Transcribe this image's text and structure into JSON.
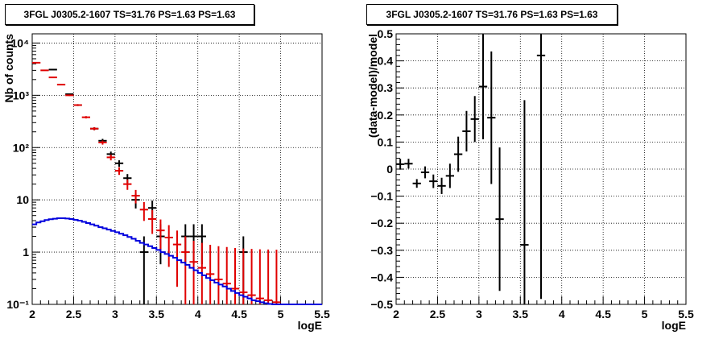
{
  "chart_data": [
    {
      "type": "scatter",
      "title": "3FGL J0305.2-1607 TS=31.76 PS=1.63 PS=1.63",
      "xlabel": "logE",
      "ylabel": "Nb of counts",
      "xlim": [
        2,
        5.5
      ],
      "ylim": [
        0.1,
        15000
      ],
      "yscale": "log",
      "grid": true,
      "x_ticks": [
        "2",
        "2.5",
        "3",
        "3.5",
        "4",
        "4.5",
        "5",
        "5.5"
      ],
      "y_ticks": [
        "10⁻¹",
        "1",
        "10",
        "10²",
        "10³",
        "10⁴"
      ],
      "series": [
        {
          "color": "#000000",
          "points": [
            {
              "x": 2.25,
              "y": 3100
            },
            {
              "x": 2.45,
              "y": 1050
            },
            {
              "x": 2.55,
              "y": 650
            },
            {
              "x": 2.75,
              "y": 230
            },
            {
              "x": 2.85,
              "y": 135
            },
            {
              "x": 2.95,
              "y": 75
            },
            {
              "x": 3.05,
              "y": 50
            },
            {
              "x": 3.15,
              "y": 26
            },
            {
              "x": 3.25,
              "y": 10
            },
            {
              "x": 3.35,
              "y": 1
            },
            {
              "x": 3.45,
              "y": 7
            },
            {
              "x": 3.55,
              "y": 2
            },
            {
              "x": 3.85,
              "y": 2
            },
            {
              "x": 3.95,
              "y": 2
            },
            {
              "x": 4.05,
              "y": 2
            },
            {
              "x": 4.55,
              "y": 1
            }
          ]
        },
        {
          "color": "#e00000",
          "points": [
            {
              "x": 2.05,
              "y": 4200
            },
            {
              "x": 2.15,
              "y": 3000
            },
            {
              "x": 2.25,
              "y": 2200
            },
            {
              "x": 2.35,
              "y": 1600
            },
            {
              "x": 2.45,
              "y": 1000
            },
            {
              "x": 2.55,
              "y": 650
            },
            {
              "x": 2.65,
              "y": 380
            },
            {
              "x": 2.75,
              "y": 230
            },
            {
              "x": 2.85,
              "y": 125
            },
            {
              "x": 2.95,
              "y": 65
            },
            {
              "x": 3.05,
              "y": 36
            },
            {
              "x": 3.15,
              "y": 20
            },
            {
              "x": 3.25,
              "y": 12
            },
            {
              "x": 3.35,
              "y": 6.5
            },
            {
              "x": 3.45,
              "y": 4.3
            },
            {
              "x": 3.55,
              "y": 2.6
            },
            {
              "x": 3.65,
              "y": 1.9
            },
            {
              "x": 3.75,
              "y": 1.4
            },
            {
              "x": 3.85,
              "y": 1.0
            },
            {
              "x": 3.95,
              "y": 0.65
            },
            {
              "x": 4.05,
              "y": 0.5
            },
            {
              "x": 4.15,
              "y": 0.38
            },
            {
              "x": 4.25,
              "y": 0.3
            },
            {
              "x": 4.35,
              "y": 0.25
            },
            {
              "x": 4.45,
              "y": 0.2
            },
            {
              "x": 4.55,
              "y": 0.17
            },
            {
              "x": 4.65,
              "y": 0.15
            },
            {
              "x": 4.75,
              "y": 0.13
            },
            {
              "x": 4.85,
              "y": 0.12
            },
            {
              "x": 4.95,
              "y": 0.11
            }
          ]
        },
        {
          "color": "#0000dd",
          "step_edges": [
            2.0,
            2.05,
            2.1,
            2.15,
            2.2,
            2.25,
            2.3,
            2.35,
            2.4,
            2.45,
            2.5,
            2.55,
            2.6,
            2.65,
            2.7,
            2.75,
            2.8,
            2.85,
            2.9,
            2.95,
            3.0,
            3.05,
            3.1,
            3.15,
            3.2,
            3.25,
            3.3,
            3.35,
            3.4,
            3.45,
            3.5,
            3.55,
            3.6,
            3.65,
            3.7,
            3.75,
            3.8,
            3.85,
            3.9,
            3.95,
            4.0,
            4.05,
            4.1,
            4.15,
            4.2,
            4.25,
            4.3,
            4.35,
            4.4,
            4.45,
            4.5,
            4.55,
            4.6,
            4.65,
            4.7,
            4.75,
            4.8,
            4.85,
            4.9,
            4.95,
            5.0,
            5.05,
            5.5
          ],
          "step_values": [
            3.4,
            3.7,
            3.9,
            4.1,
            4.25,
            4.35,
            4.45,
            4.45,
            4.4,
            4.3,
            4.15,
            4.0,
            3.8,
            3.6,
            3.4,
            3.2,
            3.0,
            2.85,
            2.7,
            2.55,
            2.4,
            2.25,
            2.1,
            1.95,
            1.8,
            1.65,
            1.5,
            1.4,
            1.3,
            1.2,
            1.1,
            1.0,
            0.92,
            0.85,
            0.78,
            0.7,
            0.63,
            0.57,
            0.5,
            0.45,
            0.4,
            0.36,
            0.32,
            0.29,
            0.26,
            0.24,
            0.22,
            0.2,
            0.18,
            0.165,
            0.15,
            0.14,
            0.13,
            0.12,
            0.115,
            0.11,
            0.105,
            0.102,
            0.1,
            0.1,
            0.1,
            0.1
          ]
        }
      ]
    },
    {
      "type": "scatter",
      "title": "3FGL J0305.2-1607 TS=31.76 PS=1.63 PS=1.63",
      "xlabel": "logE",
      "ylabel": "(data-model)/model",
      "xlim": [
        2,
        5.5
      ],
      "ylim": [
        -0.5,
        0.5
      ],
      "grid": true,
      "x_ticks": [
        "2",
        "2.5",
        "3",
        "3.5",
        "4",
        "4.5",
        "5",
        "5.5"
      ],
      "y_ticks": [
        "−0.5",
        "−0.4",
        "−0.3",
        "−0.2",
        "−0.1",
        "0",
        "0.1",
        "0.2",
        "0.3",
        "0.4",
        "0.5"
      ],
      "series": [
        {
          "color": "#000000",
          "points": [
            {
              "x": 2.05,
              "y": 0.018,
              "err": 0.02
            },
            {
              "x": 2.15,
              "y": 0.02,
              "err": 0.018
            },
            {
              "x": 2.25,
              "y": -0.053,
              "err": 0.016
            },
            {
              "x": 2.35,
              "y": -0.012,
              "err": 0.022
            },
            {
              "x": 2.45,
              "y": -0.045,
              "err": 0.025
            },
            {
              "x": 2.55,
              "y": -0.062,
              "err": 0.03
            },
            {
              "x": 2.65,
              "y": -0.025,
              "err": 0.045
            },
            {
              "x": 2.75,
              "y": 0.055,
              "err": 0.065
            },
            {
              "x": 2.85,
              "y": 0.14,
              "err": 0.075
            },
            {
              "x": 2.95,
              "y": 0.185,
              "err": 0.085
            },
            {
              "x": 3.05,
              "y": 0.305,
              "err": 0.195
            },
            {
              "x": 3.15,
              "y": 0.19,
              "err": 0.245
            },
            {
              "x": 3.25,
              "y": -0.185,
              "err": 0.265
            },
            {
              "x": 3.55,
              "y": -0.28,
              "err": 0.535
            },
            {
              "x": 3.75,
              "y": 0.42,
              "err": 0.9
            }
          ]
        }
      ]
    }
  ]
}
